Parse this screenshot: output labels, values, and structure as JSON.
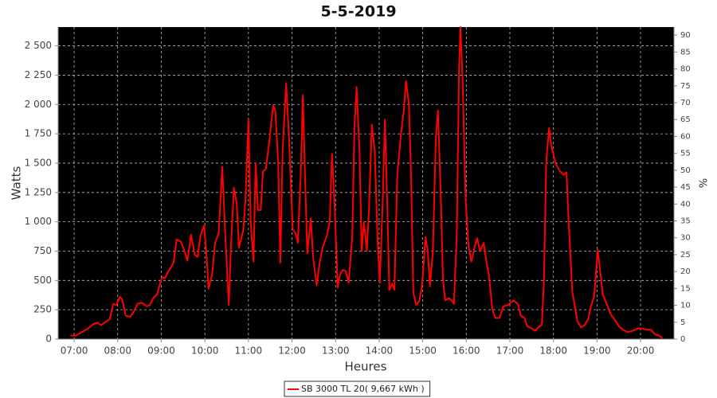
{
  "chart_data": {
    "type": "line",
    "title": "5-5-2019",
    "x_label": "Heures",
    "y_label": "Watts",
    "y2_label": "%",
    "x": [
      "06:55",
      "07:02",
      "07:08",
      "07:19",
      "07:27",
      "07:32",
      "07:37",
      "07:44",
      "07:49",
      "07:54",
      "07:58",
      "08:03",
      "08:06",
      "08:11",
      "08:17",
      "08:22",
      "08:27",
      "08:33",
      "08:40",
      "08:44",
      "08:49",
      "08:54",
      "09:01",
      "09:05",
      "09:10",
      "09:17",
      "09:21",
      "09:27",
      "09:32",
      "09:36",
      "09:41",
      "09:46",
      "09:50",
      "09:54",
      "09:59",
      "10:03",
      "10:05",
      "10:10",
      "10:14",
      "10:19",
      "10:24",
      "10:28",
      "10:33",
      "10:36",
      "10:40",
      "10:44",
      "10:47",
      "10:53",
      "10:56",
      "11:00",
      "11:03",
      "11:07",
      "11:10",
      "11:13",
      "11:17",
      "11:20",
      "11:24",
      "11:29",
      "11:34",
      "11:37",
      "11:41",
      "11:44",
      "11:47",
      "11:52",
      "11:56",
      "12:01",
      "12:05",
      "12:08",
      "12:12",
      "12:15",
      "12:18",
      "12:21",
      "12:26",
      "12:29",
      "12:34",
      "12:38",
      "12:42",
      "12:48",
      "12:52",
      "12:55",
      "12:59",
      "13:03",
      "13:06",
      "13:10",
      "13:14",
      "13:18",
      "13:23",
      "13:26",
      "13:29",
      "13:33",
      "13:36",
      "13:39",
      "13:43",
      "13:46",
      "13:50",
      "13:54",
      "13:58",
      "14:01",
      "14:05",
      "14:08",
      "14:11",
      "14:14",
      "14:18",
      "14:21",
      "14:25",
      "14:30",
      "14:34",
      "14:37",
      "14:41",
      "14:44",
      "14:47",
      "14:51",
      "14:55",
      "14:59",
      "15:04",
      "15:07",
      "15:10",
      "15:14",
      "15:18",
      "15:21",
      "15:25",
      "15:28",
      "15:31",
      "15:36",
      "15:40",
      "15:43",
      "15:47",
      "15:50",
      "15:52",
      "15:55",
      "15:59",
      "16:03",
      "16:07",
      "16:12",
      "16:15",
      "16:19",
      "16:24",
      "16:28",
      "16:31",
      "16:36",
      "16:40",
      "16:46",
      "16:51",
      "16:57",
      "17:01",
      "17:05",
      "17:11",
      "17:15",
      "17:20",
      "17:24",
      "17:30",
      "17:35",
      "17:39",
      "17:44",
      "17:47",
      "17:50",
      "17:54",
      "17:57",
      "18:03",
      "18:08",
      "18:14",
      "18:18",
      "18:21",
      "18:26",
      "18:29",
      "18:33",
      "18:38",
      "18:43",
      "18:48",
      "18:52",
      "18:56",
      "19:01",
      "19:04",
      "19:08",
      "19:14",
      "19:19",
      "19:25",
      "19:30",
      "19:36",
      "19:42",
      "19:49",
      "19:56",
      "20:02",
      "20:08",
      "20:14",
      "20:20",
      "20:25",
      "20:30"
    ],
    "series": [
      {
        "name": "SB 3000 TL 20( 9,667 kWh )",
        "color": "#ff0000",
        "values": [
          30,
          30,
          50,
          90,
          130,
          140,
          120,
          150,
          170,
          300,
          290,
          360,
          340,
          200,
          190,
          230,
          300,
          310,
          280,
          290,
          350,
          380,
          530,
          520,
          580,
          650,
          850,
          830,
          750,
          670,
          890,
          720,
          700,
          880,
          970,
          650,
          430,
          550,
          820,
          900,
          1470,
          900,
          290,
          800,
          1290,
          1150,
          780,
          930,
          1200,
          1870,
          1000,
          660,
          1500,
          1100,
          1100,
          1430,
          1450,
          1700,
          1990,
          1950,
          1500,
          650,
          1600,
          2180,
          1700,
          940,
          900,
          820,
          1400,
          2080,
          1400,
          730,
          1030,
          700,
          460,
          650,
          780,
          880,
          1000,
          1580,
          1100,
          440,
          550,
          590,
          580,
          480,
          880,
          1800,
          2150,
          1600,
          750,
          1000,
          750,
          1100,
          1830,
          1600,
          820,
          480,
          1200,
          1870,
          1200,
          420,
          470,
          420,
          1400,
          1750,
          1950,
          2200,
          2000,
          1400,
          400,
          290,
          320,
          450,
          870,
          750,
          450,
          750,
          1700,
          1950,
          1200,
          500,
          330,
          350,
          330,
          300,
          900,
          2300,
          2660,
          2200,
          1200,
          800,
          660,
          800,
          860,
          750,
          820,
          650,
          550,
          250,
          180,
          180,
          280,
          290,
          310,
          330,
          300,
          200,
          180,
          110,
          90,
          70,
          100,
          120,
          500,
          1500,
          1800,
          1650,
          1500,
          1440,
          1400,
          1420,
          1000,
          400,
          300,
          150,
          100,
          120,
          170,
          290,
          360,
          760,
          600,
          380,
          290,
          210,
          160,
          110,
          80,
          60,
          70,
          90,
          90,
          80,
          80,
          40,
          30,
          10
        ]
      }
    ],
    "xlim": [
      "06:38",
      "20:46"
    ],
    "xticks": [
      "07:00",
      "08:00",
      "09:00",
      "10:00",
      "11:00",
      "12:00",
      "13:00",
      "14:00",
      "15:00",
      "16:00",
      "17:00",
      "18:00",
      "19:00",
      "20:00"
    ],
    "ylim": [
      0,
      2660
    ],
    "yticks": [
      0,
      {
        "value": 250,
        "label": "250"
      },
      {
        "value": 500,
        "label": "500"
      },
      {
        "value": 750,
        "label": "750"
      },
      {
        "value": 1000,
        "label": "1 000"
      },
      {
        "value": 1250,
        "label": "1 250"
      },
      {
        "value": 1500,
        "label": "1 500"
      },
      {
        "value": 1750,
        "label": "1 750"
      },
      {
        "value": 2000,
        "label": "2 000"
      },
      {
        "value": 2250,
        "label": "2 250"
      },
      {
        "value": 2500,
        "label": "2 500"
      }
    ],
    "y2lim": [
      0,
      92.4
    ],
    "y2ticks": [
      0,
      5,
      10,
      15,
      20,
      25,
      30,
      35,
      40,
      45,
      50,
      55,
      60,
      65,
      70,
      75,
      80,
      85,
      90
    ],
    "grid": true,
    "background": "#000000"
  }
}
